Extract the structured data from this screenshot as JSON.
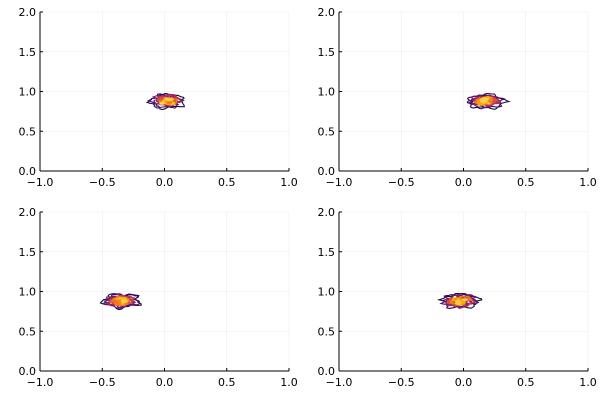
{
  "chart_data": [
    {
      "type": "contour",
      "xlim": [
        -1.0,
        1.0
      ],
      "ylim": [
        0.0,
        2.0
      ],
      "x_ticks": [
        "−1.0",
        "−0.5",
        "0.0",
        "0.5",
        "1.0"
      ],
      "y_ticks": [
        "0.0",
        "0.5",
        "1.0",
        "1.5",
        "2.0"
      ],
      "grid": true,
      "legend": "none",
      "colormap": "inferno",
      "series": [
        {
          "type": "density-contour",
          "center": [
            0.02,
            0.88
          ],
          "spread": [
            0.13,
            0.085
          ]
        }
      ]
    },
    {
      "type": "contour",
      "xlim": [
        -1.0,
        1.0
      ],
      "ylim": [
        0.0,
        2.0
      ],
      "x_ticks": [
        "−1.0",
        "−0.5",
        "0.0",
        "0.5",
        "1.0"
      ],
      "y_ticks": [
        "0.0",
        "0.5",
        "1.0",
        "1.5",
        "2.0"
      ],
      "grid": true,
      "legend": "none",
      "colormap": "inferno",
      "series": [
        {
          "type": "density-contour",
          "center": [
            0.18,
            0.88
          ],
          "spread": [
            0.14,
            0.085
          ]
        }
      ]
    },
    {
      "type": "contour",
      "xlim": [
        -1.0,
        1.0
      ],
      "ylim": [
        0.0,
        2.0
      ],
      "x_ticks": [
        "−1.0",
        "−0.5",
        "0.0",
        "0.5",
        "1.0"
      ],
      "y_ticks": [
        "0.0",
        "0.5",
        "1.0",
        "1.5",
        "2.0"
      ],
      "grid": true,
      "legend": "none",
      "colormap": "inferno",
      "series": [
        {
          "type": "density-contour",
          "center": [
            -0.35,
            0.88
          ],
          "spread": [
            0.14,
            0.085
          ]
        }
      ]
    },
    {
      "type": "contour",
      "xlim": [
        -1.0,
        1.0
      ],
      "ylim": [
        0.0,
        2.0
      ],
      "x_ticks": [
        "−1.0",
        "−0.5",
        "0.0",
        "0.5",
        "1.0"
      ],
      "y_ticks": [
        "0.0",
        "0.5",
        "1.0",
        "1.5",
        "2.0"
      ],
      "grid": true,
      "legend": "none",
      "colormap": "inferno",
      "series": [
        {
          "type": "density-contour",
          "center": [
            -0.03,
            0.88
          ],
          "spread": [
            0.14,
            0.085
          ]
        }
      ]
    }
  ],
  "colors": {
    "levels": [
      "#170b3a",
      "#420a68",
      "#6b176e",
      "#932667",
      "#bc3754",
      "#dd513a",
      "#f37819",
      "#fca50a",
      "#f6d746"
    ]
  }
}
